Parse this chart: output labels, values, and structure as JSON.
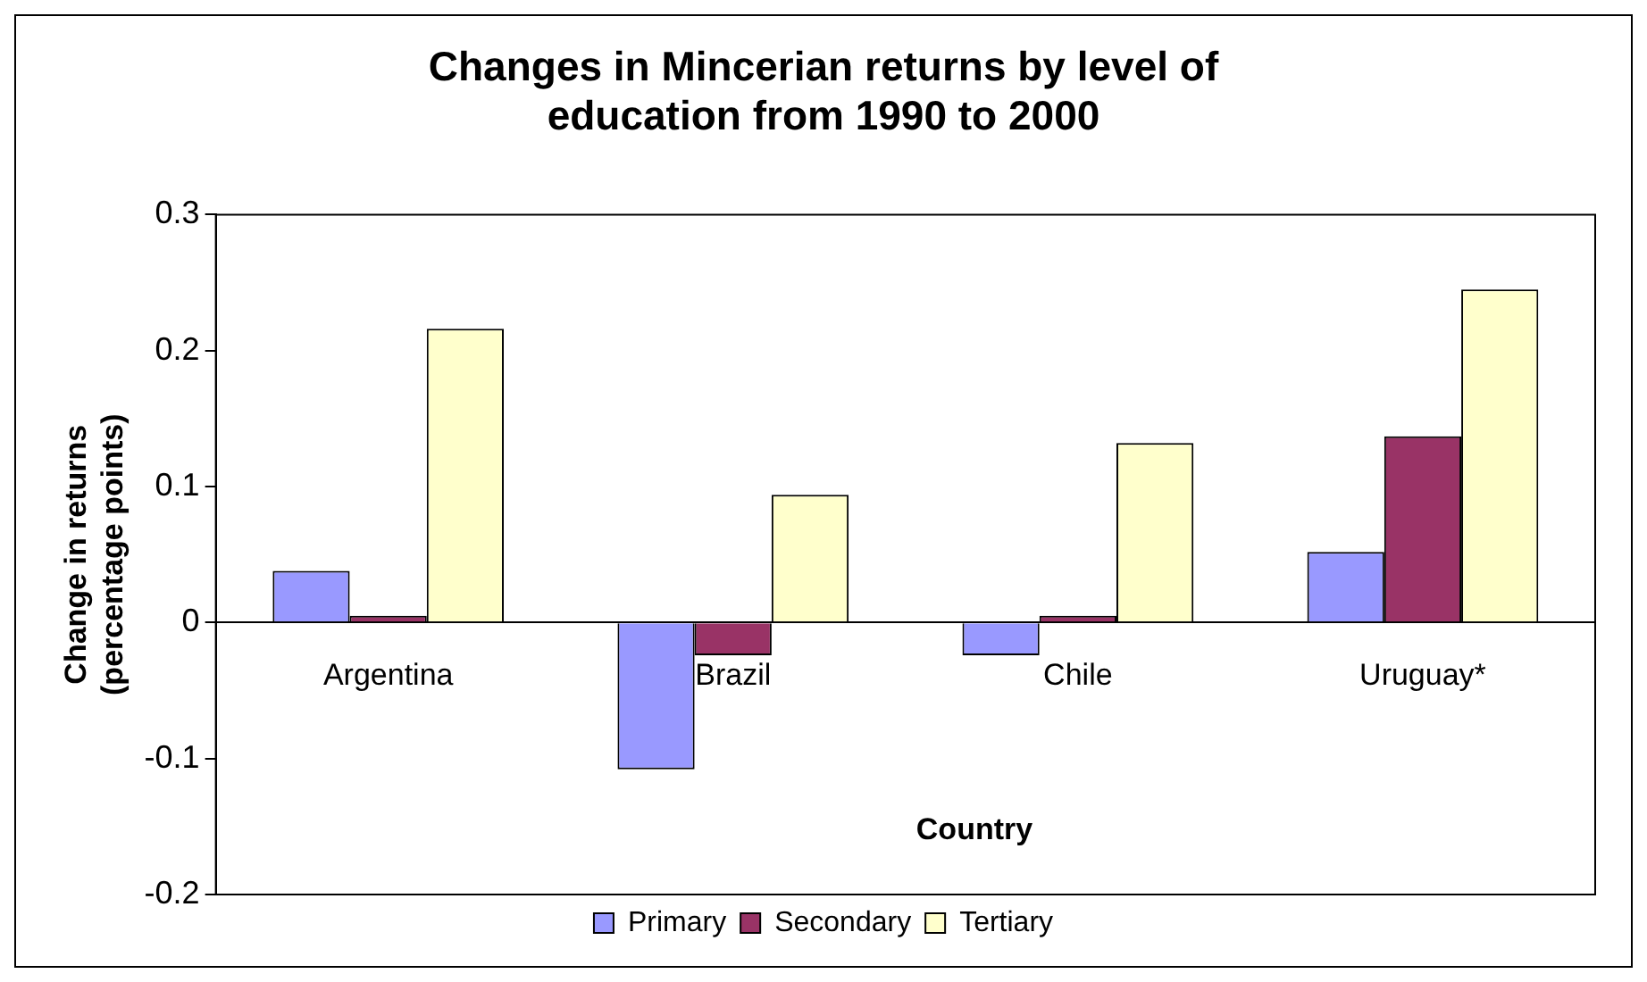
{
  "chart_data": {
    "type": "bar",
    "title": "Changes in Mincerian returns by level of education from 1990 to 2000",
    "xlabel": "Country",
    "ylabel": "Change in returns (percentage points)",
    "categories": [
      "Argentina",
      "Brazil",
      "Chile",
      "Uruguay*"
    ],
    "series": [
      {
        "name": "Primary",
        "color": "#9999ff",
        "values": [
          0.038,
          -0.108,
          -0.024,
          0.052
        ]
      },
      {
        "name": "Secondary",
        "color": "#993366",
        "values": [
          0.005,
          -0.024,
          0.005,
          0.137
        ]
      },
      {
        "name": "Tertiary",
        "color": "#ffffcc",
        "values": [
          0.216,
          0.094,
          0.132,
          0.245
        ]
      }
    ],
    "ylim": [
      -0.2,
      0.3
    ],
    "yticks": [
      -0.2,
      -0.1,
      0,
      0.1,
      0.2,
      0.3
    ],
    "grid": false,
    "legend": "bottom"
  }
}
